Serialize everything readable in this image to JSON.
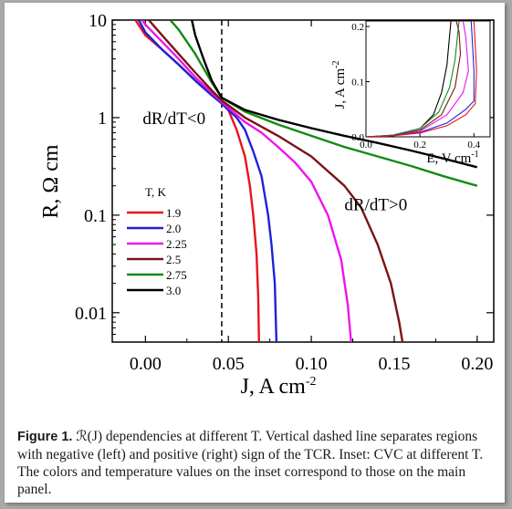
{
  "chart_data": [
    {
      "type": "line",
      "ylabel": "R, Ω cm",
      "xlabel": "J, A cm",
      "xlabel_sup": "-2",
      "xscale": "linear",
      "yscale": "log",
      "xlim": [
        -0.02,
        0.21
      ],
      "ylim": [
        0.005,
        10
      ],
      "x_ticks": [
        0.0,
        0.05,
        0.1,
        0.15,
        0.2
      ],
      "x_tick_labels": [
        "0.00",
        "0.05",
        "0.10",
        "0.15",
        "0.20"
      ],
      "y_ticks": [
        0.01,
        0.1,
        1,
        10
      ],
      "y_tick_labels": [
        "0.01",
        "0.1",
        "1",
        "10"
      ],
      "vline": {
        "x": 0.046,
        "style": "dashed"
      },
      "annotations": [
        {
          "text": "dR/dT<0",
          "x": 0.0,
          "y": 1.0
        },
        {
          "text": "dR/dT>0",
          "x": 0.12,
          "y": 0.13
        }
      ],
      "legend": {
        "title": "T, K",
        "placement": "center-left"
      },
      "grid": false,
      "series": [
        {
          "name": "1.9",
          "color": "#e8141c",
          "points": [
            [
              -0.006,
              10
            ],
            [
              0.0,
              7
            ],
            [
              0.01,
              5
            ],
            [
              0.02,
              3.5
            ],
            [
              0.03,
              2.4
            ],
            [
              0.04,
              1.7
            ],
            [
              0.046,
              1.4
            ],
            [
              0.05,
              1.2
            ],
            [
              0.055,
              0.75
            ],
            [
              0.06,
              0.4
            ],
            [
              0.063,
              0.2
            ],
            [
              0.065,
              0.1
            ],
            [
              0.067,
              0.04
            ],
            [
              0.068,
              0.015
            ],
            [
              0.0685,
              0.005
            ]
          ]
        },
        {
          "name": "2.0",
          "color": "#1c23d8",
          "points": [
            [
              -0.004,
              10
            ],
            [
              0.0,
              7.5
            ],
            [
              0.01,
              5
            ],
            [
              0.02,
              3.5
            ],
            [
              0.03,
              2.4
            ],
            [
              0.04,
              1.7
            ],
            [
              0.046,
              1.4
            ],
            [
              0.05,
              1.2
            ],
            [
              0.055,
              1.0
            ],
            [
              0.06,
              0.75
            ],
            [
              0.065,
              0.45
            ],
            [
              0.07,
              0.25
            ],
            [
              0.074,
              0.1
            ],
            [
              0.076,
              0.05
            ],
            [
              0.078,
              0.02
            ],
            [
              0.079,
              0.005
            ]
          ]
        },
        {
          "name": "2.25",
          "color": "#ee14ee",
          "points": [
            [
              -0.002,
              10
            ],
            [
              0.0,
              9
            ],
            [
              0.01,
              6
            ],
            [
              0.02,
              4
            ],
            [
              0.03,
              2.6
            ],
            [
              0.04,
              1.8
            ],
            [
              0.046,
              1.45
            ],
            [
              0.06,
              0.9
            ],
            [
              0.07,
              0.7
            ],
            [
              0.08,
              0.5
            ],
            [
              0.09,
              0.35
            ],
            [
              0.1,
              0.22
            ],
            [
              0.11,
              0.1
            ],
            [
              0.118,
              0.035
            ],
            [
              0.122,
              0.012
            ],
            [
              0.124,
              0.005
            ]
          ]
        },
        {
          "name": "2.5",
          "color": "#7a1414",
          "points": [
            [
              0.002,
              10
            ],
            [
              0.01,
              7
            ],
            [
              0.02,
              4.5
            ],
            [
              0.03,
              2.9
            ],
            [
              0.04,
              1.9
            ],
            [
              0.046,
              1.5
            ],
            [
              0.06,
              1.0
            ],
            [
              0.08,
              0.65
            ],
            [
              0.1,
              0.4
            ],
            [
              0.12,
              0.2
            ],
            [
              0.13,
              0.12
            ],
            [
              0.14,
              0.05
            ],
            [
              0.148,
              0.02
            ],
            [
              0.153,
              0.008
            ],
            [
              0.155,
              0.005
            ]
          ]
        },
        {
          "name": "2.75",
          "color": "#138a13",
          "points": [
            [
              0.015,
              10
            ],
            [
              0.02,
              8
            ],
            [
              0.03,
              4.5
            ],
            [
              0.04,
              2.3
            ],
            [
              0.046,
              1.6
            ],
            [
              0.06,
              1.15
            ],
            [
              0.08,
              0.85
            ],
            [
              0.1,
              0.65
            ],
            [
              0.12,
              0.5
            ],
            [
              0.14,
              0.4
            ],
            [
              0.16,
              0.32
            ],
            [
              0.18,
              0.25
            ],
            [
              0.2,
              0.2
            ]
          ]
        },
        {
          "name": "3.0",
          "color": "#000000",
          "points": [
            [
              0.028,
              10
            ],
            [
              0.03,
              7
            ],
            [
              0.035,
              4
            ],
            [
              0.04,
              2.4
            ],
            [
              0.046,
              1.6
            ],
            [
              0.06,
              1.2
            ],
            [
              0.08,
              0.95
            ],
            [
              0.1,
              0.78
            ],
            [
              0.12,
              0.65
            ],
            [
              0.14,
              0.55
            ],
            [
              0.16,
              0.46
            ],
            [
              0.18,
              0.38
            ],
            [
              0.2,
              0.31
            ]
          ]
        }
      ]
    },
    {
      "type": "line",
      "ylabel": "J, A cm",
      "ylabel_sup": "-2",
      "xlabel": "E, V cm",
      "xlabel_sup": "-1",
      "xlim": [
        0.0,
        0.46
      ],
      "ylim": [
        0.0,
        0.21
      ],
      "x_ticks": [
        0.0,
        0.2,
        0.4
      ],
      "x_tick_labels": [
        "0.0",
        "0.2",
        "0.4"
      ],
      "y_ticks": [
        0.0,
        0.1,
        0.2
      ],
      "y_tick_labels": [
        "0.0",
        "0.1",
        "0.2"
      ],
      "series": [
        {
          "color": "#000000",
          "points": [
            [
              0.0,
              0.0
            ],
            [
              0.1,
              0.003
            ],
            [
              0.2,
              0.015
            ],
            [
              0.25,
              0.04
            ],
            [
              0.28,
              0.08
            ],
            [
              0.3,
              0.13
            ],
            [
              0.315,
              0.21
            ]
          ]
        },
        {
          "color": "#138a13",
          "points": [
            [
              0.0,
              0.0
            ],
            [
              0.1,
              0.003
            ],
            [
              0.2,
              0.015
            ],
            [
              0.27,
              0.045
            ],
            [
              0.31,
              0.09
            ],
            [
              0.33,
              0.14
            ],
            [
              0.345,
              0.21
            ]
          ]
        },
        {
          "color": "#7a1414",
          "points": [
            [
              0.0,
              0.0
            ],
            [
              0.1,
              0.002
            ],
            [
              0.2,
              0.012
            ],
            [
              0.28,
              0.04
            ],
            [
              0.33,
              0.09
            ],
            [
              0.35,
              0.15
            ],
            [
              0.345,
              0.19
            ],
            [
              0.335,
              0.21
            ]
          ]
        },
        {
          "color": "#ee14ee",
          "points": [
            [
              0.0,
              0.0
            ],
            [
              0.1,
              0.002
            ],
            [
              0.2,
              0.01
            ],
            [
              0.3,
              0.04
            ],
            [
              0.36,
              0.08
            ],
            [
              0.38,
              0.12
            ],
            [
              0.37,
              0.18
            ],
            [
              0.36,
              0.21
            ]
          ]
        },
        {
          "color": "#1c23d8",
          "points": [
            [
              0.0,
              0.0
            ],
            [
              0.1,
              0.002
            ],
            [
              0.2,
              0.008
            ],
            [
              0.3,
              0.025
            ],
            [
              0.37,
              0.05
            ],
            [
              0.4,
              0.065
            ],
            [
              0.4,
              0.12
            ],
            [
              0.39,
              0.21
            ]
          ]
        },
        {
          "color": "#e8141c",
          "points": [
            [
              0.0,
              0.0
            ],
            [
              0.1,
              0.002
            ],
            [
              0.2,
              0.007
            ],
            [
              0.3,
              0.02
            ],
            [
              0.37,
              0.04
            ],
            [
              0.405,
              0.06
            ],
            [
              0.41,
              0.12
            ],
            [
              0.4,
              0.21
            ]
          ]
        }
      ]
    }
  ],
  "caption": {
    "label": "Figure 1.",
    "text": " ℛ(J) dependencies at different T. Vertical dashed line separates regions with negative (left) and positive (right) sign of the TCR. Inset: CVC at different T. The colors and temperature values on the inset correspond to those on the main panel."
  }
}
